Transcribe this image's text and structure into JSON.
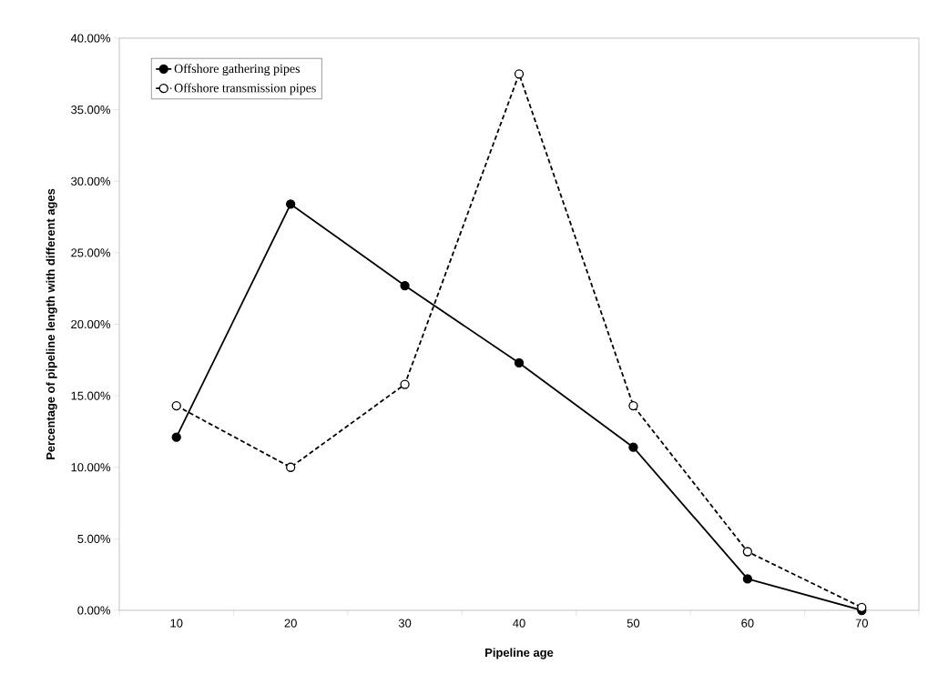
{
  "chart_data": {
    "type": "line",
    "xlabel": "Pipeline age",
    "ylabel": "Percentage of pipeline length with different ages",
    "categories": [
      "10",
      "20",
      "30",
      "40",
      "50",
      "60",
      "70"
    ],
    "series": [
      {
        "name": "Offshore gathering pipes",
        "color": "#000000",
        "marker": "circle",
        "line_style": "solid",
        "values": [
          12.1,
          28.4,
          22.7,
          17.3,
          11.4,
          2.2,
          0.0
        ]
      },
      {
        "name": "Offshore transmission pipes",
        "color": "#000000",
        "marker": "circle",
        "line_style": "dashed",
        "values": [
          14.3,
          10.0,
          15.8,
          37.5,
          14.3,
          4.1,
          0.2
        ]
      }
    ],
    "ylim": [
      0,
      40
    ],
    "yticks": [
      {
        "value": 0,
        "label": "0.00%"
      },
      {
        "value": 5,
        "label": "5.00%"
      },
      {
        "value": 10,
        "label": "10.00%"
      },
      {
        "value": 15,
        "label": "15.00%"
      },
      {
        "value": 20,
        "label": "20.00%"
      },
      {
        "value": 25,
        "label": "25.00%"
      },
      {
        "value": 30,
        "label": "30.00%"
      },
      {
        "value": 35,
        "label": "35.00%"
      },
      {
        "value": 40,
        "label": "40.00%"
      }
    ],
    "grid": false,
    "legend": "top left"
  }
}
